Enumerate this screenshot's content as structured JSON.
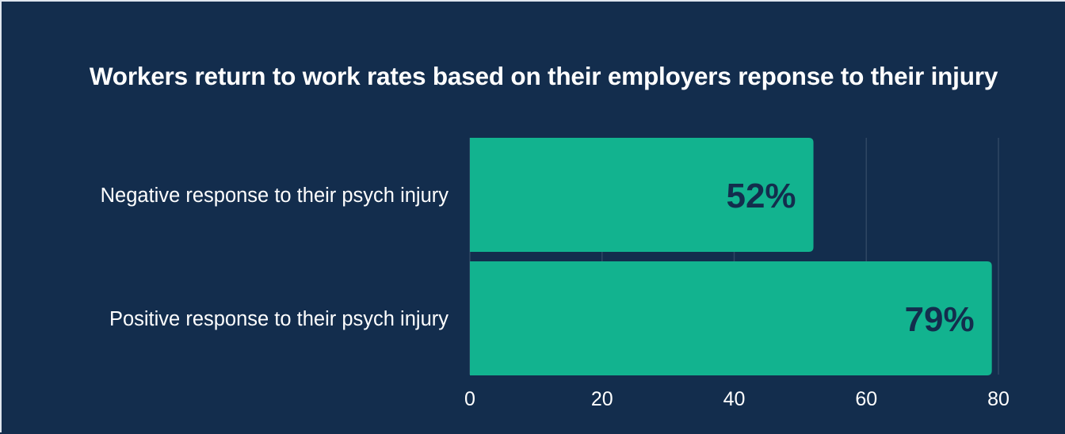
{
  "chart_data": {
    "type": "bar",
    "orientation": "horizontal",
    "title": "Workers return to work rates based on their employers reponse to their injury",
    "categories": [
      "Negative response to their psych injury",
      "Positive response to their psych injury"
    ],
    "values": [
      52,
      79
    ],
    "data_labels": [
      "52%",
      "79%"
    ],
    "xlim": [
      0,
      80
    ],
    "xticks": [
      0,
      20,
      40,
      60,
      80
    ],
    "grid": true,
    "legend": "none"
  },
  "colors": {
    "background": "#132d4d",
    "bar": "#12b38f",
    "grid": "#2f4663",
    "text": "#ffffff",
    "data_label": "#132d4d"
  }
}
